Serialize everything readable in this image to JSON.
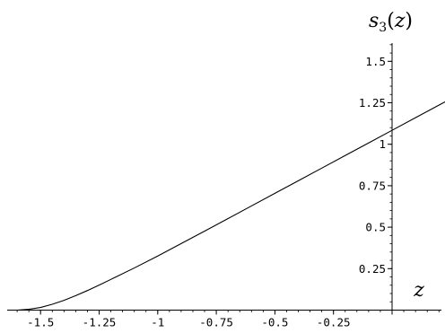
{
  "chart_data": {
    "type": "line",
    "title": "",
    "xlabel": "z",
    "ylabel": {
      "base": "s",
      "subscript": "3",
      "suffix": "(z)"
    },
    "xlim": [
      -1.6,
      0.25
    ],
    "ylim": [
      0,
      1.6
    ],
    "x_ticks": [
      {
        "value": -1.5,
        "label": "-1.5"
      },
      {
        "value": -1.25,
        "label": "-1.25"
      },
      {
        "value": -1,
        "label": "-1"
      },
      {
        "value": -0.75,
        "label": "-0.75"
      },
      {
        "value": -0.5,
        "label": "-0.5"
      },
      {
        "value": -0.25,
        "label": "-0.25"
      }
    ],
    "y_ticks": [
      {
        "value": 0.25,
        "label": "0.25"
      },
      {
        "value": 0.5,
        "label": "0.5"
      },
      {
        "value": 0.75,
        "label": "0.75"
      },
      {
        "value": 1,
        "label": "1"
      },
      {
        "value": 1.25,
        "label": "1.25"
      },
      {
        "value": 1.5,
        "label": "1.5"
      }
    ],
    "x_minor_step": 0.05,
    "y_minor_step": 0.05,
    "grid": false,
    "series": [
      {
        "x": [
          -1.6,
          -1.55,
          -1.5,
          -1.45,
          -1.4,
          -1.35,
          -1.3,
          -1.25,
          -1.2,
          -1.1,
          -1.0,
          -0.9,
          -0.8,
          -0.7,
          -0.6,
          -0.5,
          -0.4,
          -0.3,
          -0.2,
          -0.1,
          0.0,
          0.1,
          0.2,
          0.25
        ],
        "y": [
          0.0,
          0.005,
          0.016,
          0.035,
          0.059,
          0.087,
          0.118,
          0.151,
          0.185,
          0.254,
          0.326,
          0.401,
          0.476,
          0.552,
          0.628,
          0.704,
          0.78,
          0.856,
          0.932,
          1.008,
          1.084,
          1.16,
          1.236,
          1.274
        ],
        "color": "#000000"
      }
    ]
  }
}
